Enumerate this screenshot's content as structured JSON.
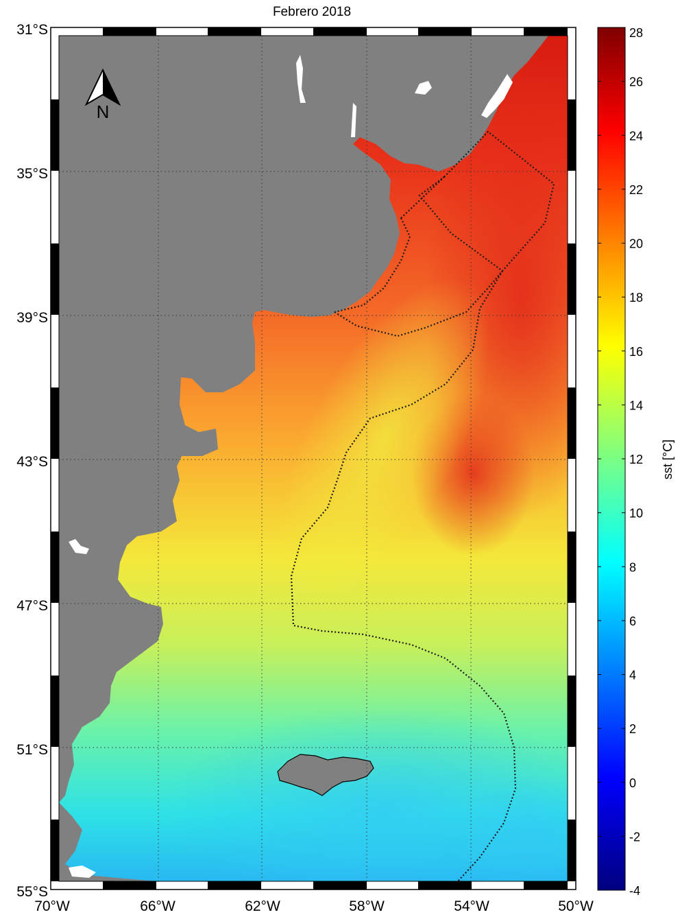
{
  "title": "Febrero 2018",
  "north_arrow": {
    "label": "N",
    "icon": "north-arrow-icon"
  },
  "lat_labels": [
    "31°S",
    "35°S",
    "39°S",
    "43°S",
    "47°S",
    "51°S",
    "55°S"
  ],
  "lon_labels": [
    "70°W",
    "66°W",
    "62°W",
    "58°W",
    "54°W",
    "50°W"
  ],
  "colorbar": {
    "label": "sst [°C]",
    "min": -4,
    "max": 28,
    "tick_labels": [
      "28",
      "26",
      "24",
      "22",
      "20",
      "18",
      "16",
      "14",
      "12",
      "10",
      "8",
      "6",
      "4",
      "2",
      "0",
      "-2",
      "-4"
    ],
    "colormap": "jet"
  },
  "colors": {
    "land": "#808080",
    "lakes": "#ffffff",
    "warm": "#e32a16",
    "cold": "#20c8ff"
  },
  "map_extent": {
    "lon": [
      -70,
      -50
    ],
    "lat": [
      -55,
      -31
    ]
  }
}
